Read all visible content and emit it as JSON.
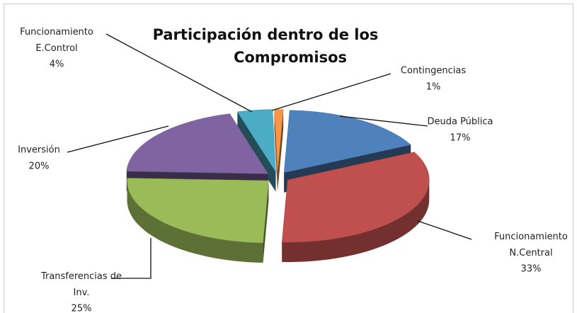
{
  "chart_data": {
    "type": "pie3d",
    "title": "Participación  dentro de los\nCompromisos",
    "categories": [
      "Deuda Pública",
      "Funcionamiento\nN.Central",
      "Transferencias de\nInv.",
      "Inversión",
      "Funcionamiento\nE.Control",
      "Contingencias"
    ],
    "values": [
      17,
      33,
      25,
      20,
      4,
      1
    ],
    "value_labels": [
      "17%",
      "33%",
      "25%",
      "20%",
      "4%",
      "1%"
    ],
    "colors": [
      "#4f81bd",
      "#c0504d",
      "#9bbb59",
      "#8064a2",
      "#4bacc6",
      "#f79646"
    ]
  }
}
